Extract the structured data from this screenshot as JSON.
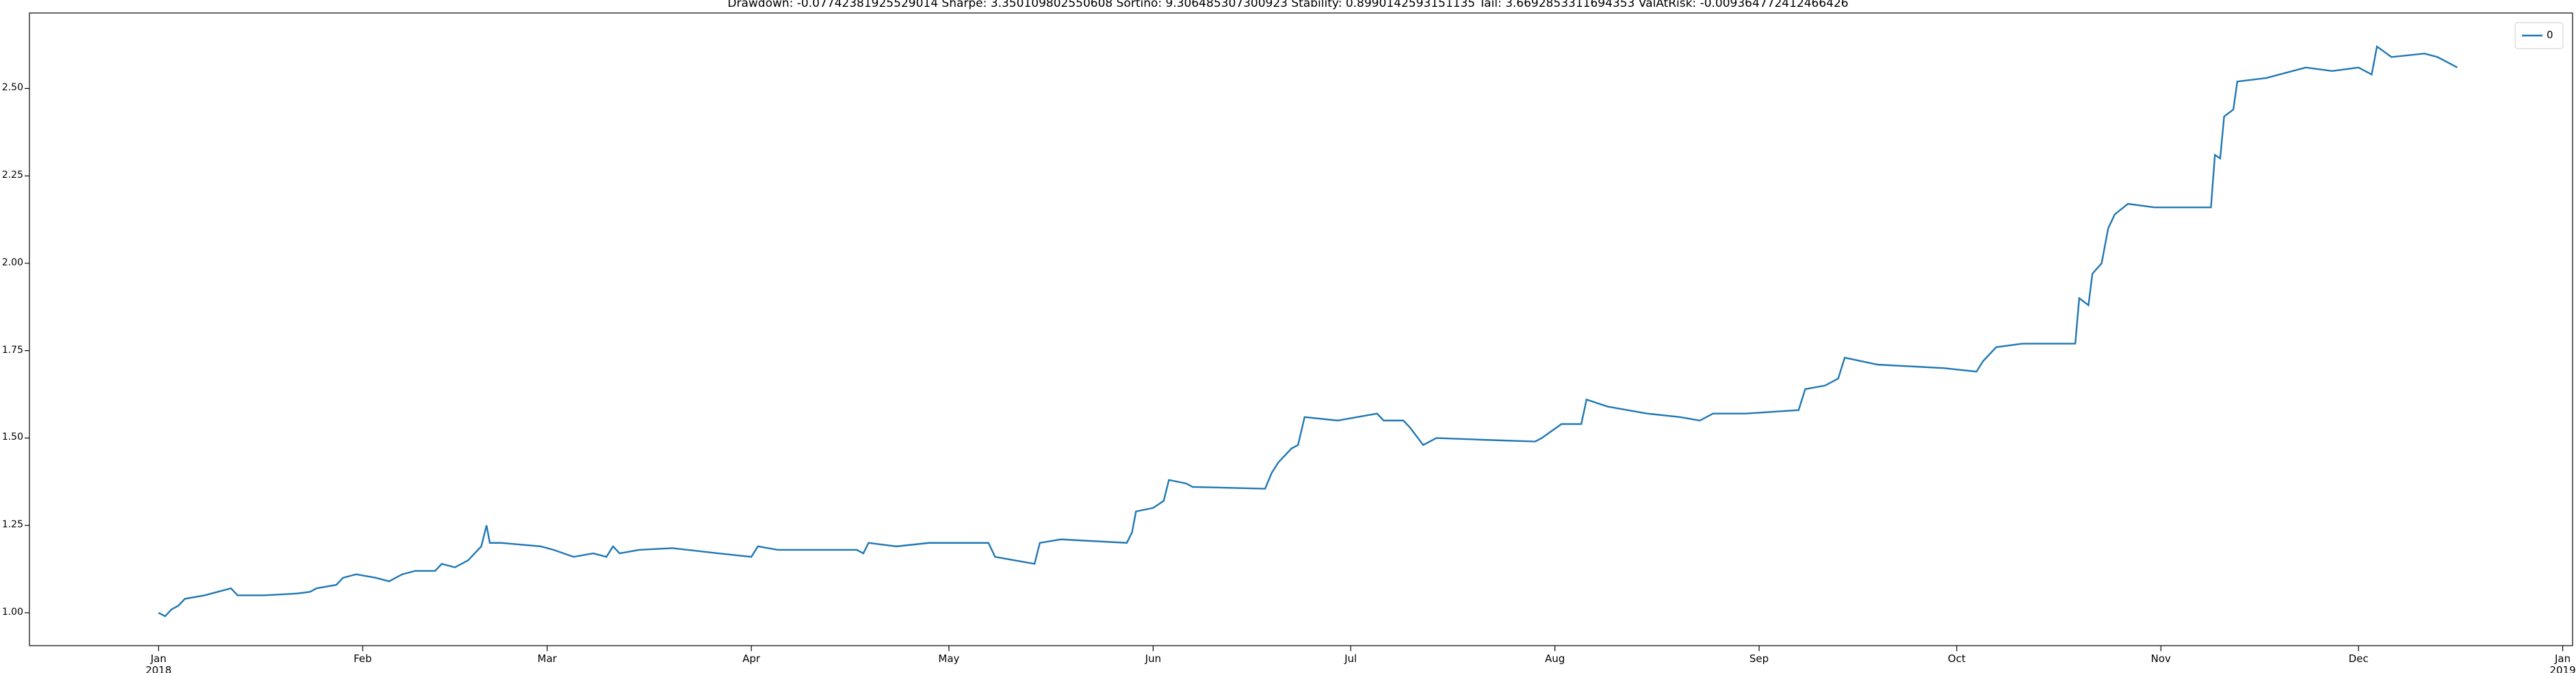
{
  "chart_data": {
    "type": "line",
    "title": "Drawdown: -0.07742381925529014 Sharpe: 3.350109802550608 Sortino: 9.306485307300923 Stability: 0.8990142593151135 Tail: 3.6692853311694353 ValAtRisk: -0.009364772412466426",
    "x": [
      0,
      1,
      2,
      3,
      4,
      7,
      9,
      11,
      12,
      16,
      21,
      23,
      24,
      27,
      28,
      30,
      33,
      35,
      37,
      39,
      42,
      43,
      45,
      47,
      49,
      49.8,
      50.3,
      52,
      58,
      60,
      63,
      66,
      68,
      69,
      70,
      73,
      78,
      85,
      90,
      91,
      94,
      102,
      106,
      107,
      107.8,
      112,
      117,
      126,
      127,
      130,
      133,
      133.8,
      137,
      147,
      147.8,
      148.4,
      151,
      152.6,
      153.4,
      156,
      157,
      168,
      169,
      170,
      172,
      173,
      174,
      179,
      185,
      186,
      189,
      190,
      192,
      194,
      201,
      209,
      210,
      213,
      216,
      216.8,
      220,
      226,
      231,
      234,
      236,
      241,
      249,
      250,
      253,
      255,
      256,
      261,
      271,
      276,
      277,
      279,
      283,
      291,
      291.6,
      293,
      293.6,
      295,
      296,
      297,
      299,
      303,
      310,
      311.6,
      312.2,
      313,
      313.6,
      315,
      315.6,
      320,
      326,
      330,
      334,
      336,
      336.8,
      339,
      344,
      346,
      348,
      349
    ],
    "series": [
      {
        "name": "0",
        "color": "#1f77b4",
        "values": [
          1.0,
          0.99,
          1.01,
          1.02,
          1.04,
          1.05,
          1.06,
          1.07,
          1.05,
          1.05,
          1.055,
          1.06,
          1.07,
          1.08,
          1.1,
          1.11,
          1.1,
          1.09,
          1.11,
          1.12,
          1.12,
          1.14,
          1.13,
          1.15,
          1.19,
          1.25,
          1.2,
          1.2,
          1.19,
          1.18,
          1.16,
          1.17,
          1.16,
          1.19,
          1.17,
          1.18,
          1.185,
          1.17,
          1.16,
          1.19,
          1.18,
          1.18,
          1.18,
          1.17,
          1.2,
          1.19,
          1.2,
          1.2,
          1.16,
          1.15,
          1.14,
          1.2,
          1.21,
          1.2,
          1.23,
          1.29,
          1.3,
          1.32,
          1.38,
          1.37,
          1.36,
          1.355,
          1.4,
          1.43,
          1.47,
          1.48,
          1.56,
          1.55,
          1.57,
          1.55,
          1.55,
          1.53,
          1.48,
          1.5,
          1.495,
          1.49,
          1.5,
          1.54,
          1.54,
          1.61,
          1.59,
          1.57,
          1.56,
          1.55,
          1.57,
          1.57,
          1.58,
          1.64,
          1.65,
          1.67,
          1.73,
          1.71,
          1.7,
          1.69,
          1.72,
          1.76,
          1.77,
          1.77,
          1.9,
          1.88,
          1.97,
          2.0,
          2.1,
          2.14,
          2.17,
          2.16,
          2.16,
          2.16,
          2.31,
          2.3,
          2.42,
          2.44,
          2.52,
          2.53,
          2.56,
          2.55,
          2.56,
          2.54,
          2.62,
          2.59,
          2.6,
          2.59,
          2.57,
          2.56
        ]
      }
    ],
    "xlim": [
      -19.6,
      366.5
    ],
    "xticks": [
      {
        "value": 0,
        "label": "Jan\n2018"
      },
      {
        "value": 31,
        "label": "Feb"
      },
      {
        "value": 59,
        "label": "Mar"
      },
      {
        "value": 90,
        "label": "Apr"
      },
      {
        "value": 120,
        "label": "May"
      },
      {
        "value": 151,
        "label": "Jun"
      },
      {
        "value": 181,
        "label": "Jul"
      },
      {
        "value": 212,
        "label": "Aug"
      },
      {
        "value": 243,
        "label": "Sep"
      },
      {
        "value": 273,
        "label": "Oct"
      },
      {
        "value": 304,
        "label": "Nov"
      },
      {
        "value": 334,
        "label": "Dec"
      },
      {
        "value": 365,
        "label": "Jan\n2019"
      }
    ],
    "ylim": [
      0.906,
      2.716
    ],
    "yticks": [
      {
        "value": 1,
        "label": "1.00"
      },
      1.25,
      {
        "value": 1.5,
        "label": "1.50"
      },
      1.75,
      {
        "value": 2,
        "label": "2.00"
      },
      2.25,
      {
        "value": 2.5,
        "label": "2.50"
      }
    ],
    "legend": "upper right"
  }
}
